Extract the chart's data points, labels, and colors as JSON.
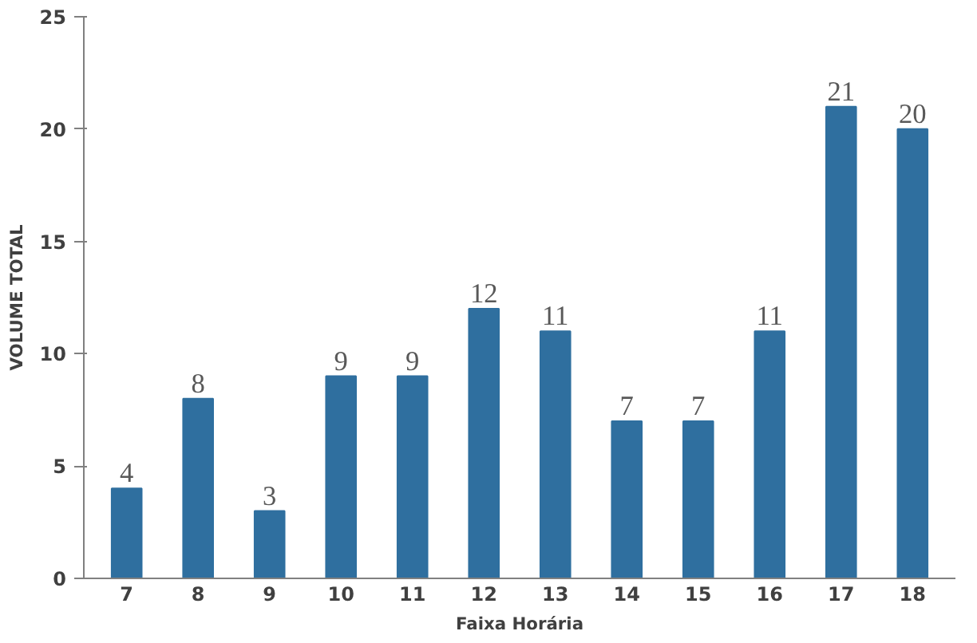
{
  "chart_data": {
    "type": "bar",
    "xlabel": "Faixa Horária",
    "ylabel": "VOLUME TOTAL",
    "categories": [
      "7",
      "8",
      "9",
      "10",
      "11",
      "12",
      "13",
      "14",
      "15",
      "16",
      "17",
      "18"
    ],
    "values": [
      4,
      8,
      3,
      9,
      9,
      12,
      11,
      7,
      7,
      11,
      21,
      20
    ],
    "color": "#2f6f9f",
    "ylim": [
      0,
      25
    ],
    "yticks": [
      0,
      5,
      10,
      15,
      20,
      25
    ],
    "grid": false,
    "data_labels": true
  }
}
